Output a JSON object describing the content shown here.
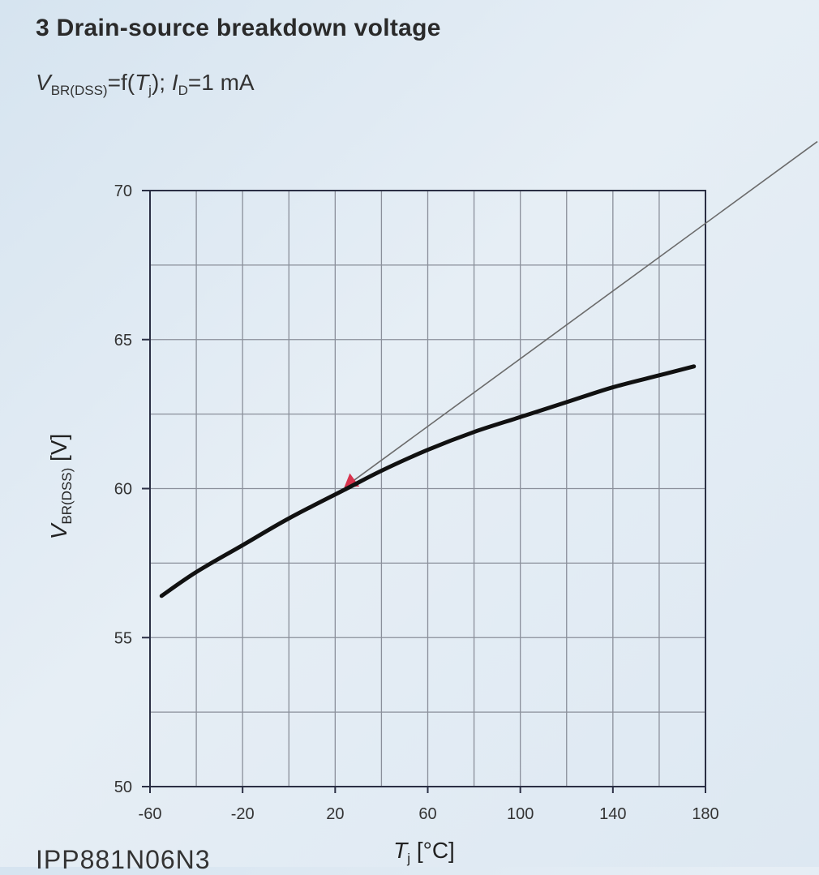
{
  "heading": {
    "title": "3 Drain-source breakdown voltage",
    "subtitle": {
      "v": "V",
      "v_sub": "BR(DSS)",
      "mid": "=f(",
      "t": "T",
      "t_sub": "j",
      "end": "); ",
      "i": "I",
      "i_sub": "D",
      "tail": "=1 mA"
    }
  },
  "footer": {
    "part_number": "IPP881N06N3"
  },
  "chart_data": {
    "type": "line",
    "xlim": [
      -60,
      180
    ],
    "ylim": [
      50,
      70
    ],
    "x_ticks": [
      -60,
      -20,
      20,
      60,
      100,
      140,
      180
    ],
    "y_ticks": [
      50,
      55,
      60,
      65,
      70
    ],
    "grid": true,
    "xlabel": {
      "sym": "T",
      "sub": "j",
      "unit": " [°C]"
    },
    "ylabel": {
      "sym": "V",
      "sub": "BR(DSS)",
      "unit": " [V]"
    },
    "series": [
      {
        "x": [
          -55,
          -40,
          -20,
          0,
          25,
          40,
          60,
          80,
          100,
          120,
          140,
          160,
          175
        ],
        "y": [
          56.4,
          57.2,
          58.1,
          59.0,
          60.0,
          60.6,
          61.3,
          61.9,
          62.4,
          62.9,
          63.4,
          63.8,
          64.1
        ],
        "color": "#111111"
      }
    ],
    "annotations": [
      {
        "type": "arrow-line",
        "from": [
          25,
          60.1
        ],
        "to": [
          180,
          68.9
        ],
        "extends_beyond_plot": true,
        "color": "#6b6b6b",
        "marker_color": "#d8344e"
      }
    ]
  }
}
